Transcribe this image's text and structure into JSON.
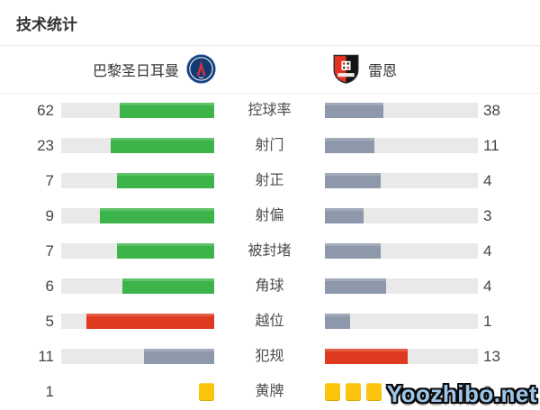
{
  "title": "技术统计",
  "header": {
    "home_team": "巴黎圣日耳曼",
    "away_team": "雷恩"
  },
  "watermark": "Yoozhibo.net",
  "colors": {
    "green": "#3cb44a",
    "slate": "#8d99aa",
    "red": "#dd3a20",
    "yellow": "#fcc40d",
    "track": "#e9e9e9"
  },
  "rows": [
    {
      "type": "bar",
      "label": "控球率",
      "home": 62,
      "away": 38,
      "home_color": "#3cb44a",
      "away_color": "#8d99aa"
    },
    {
      "type": "bar",
      "label": "射门",
      "home": 23,
      "away": 11,
      "home_color": "#3cb44a",
      "away_color": "#8d99aa"
    },
    {
      "type": "bar",
      "label": "射正",
      "home": 7,
      "away": 4,
      "home_color": "#3cb44a",
      "away_color": "#8d99aa"
    },
    {
      "type": "bar",
      "label": "射偏",
      "home": 9,
      "away": 3,
      "home_color": "#3cb44a",
      "away_color": "#8d99aa"
    },
    {
      "type": "bar",
      "label": "被封堵",
      "home": 7,
      "away": 4,
      "home_color": "#3cb44a",
      "away_color": "#8d99aa"
    },
    {
      "type": "bar",
      "label": "角球",
      "home": 6,
      "away": 4,
      "home_color": "#3cb44a",
      "away_color": "#8d99aa"
    },
    {
      "type": "bar",
      "label": "越位",
      "home": 5,
      "away": 1,
      "home_color": "#dd3a20",
      "away_color": "#8d99aa"
    },
    {
      "type": "bar",
      "label": "犯规",
      "home": 11,
      "away": 13,
      "home_color": "#8d99aa",
      "away_color": "#dd3a20"
    },
    {
      "type": "cards",
      "label": "黄牌",
      "home": 1,
      "away": 3,
      "card_color": "#fcc40d"
    }
  ],
  "chart_data": {
    "type": "bar",
    "title": "技术统计",
    "orientation": "horizontal-mirrored",
    "categories": [
      "控球率",
      "射门",
      "射正",
      "射偏",
      "被封堵",
      "角球",
      "越位",
      "犯规",
      "黄牌"
    ],
    "series": [
      {
        "name": "巴黎圣日耳曼",
        "values": [
          62,
          23,
          7,
          9,
          7,
          6,
          5,
          11,
          1
        ]
      },
      {
        "name": "雷恩",
        "values": [
          38,
          11,
          4,
          3,
          4,
          4,
          1,
          13,
          3
        ]
      }
    ],
    "legend_position": "top",
    "notes": "Each bar fill length = value/(home value + away value). Leading team bar colored green for positive stats, red for negative stats (越位, 犯规); trailing team bar slate gray. 黄牌 row rendered as yellow card icons instead of bars."
  }
}
